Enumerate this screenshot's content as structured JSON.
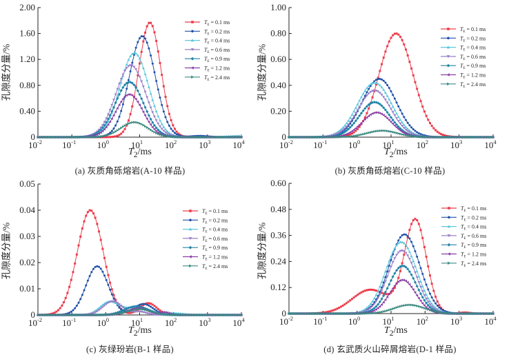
{
  "series_styles": [
    {
      "name": "T_E = 0.1 ms",
      "label_prefix": "T",
      "label_sub": "E",
      "label_value": " = 0.1 ms",
      "color": "#ee3b4a",
      "marker": "square"
    },
    {
      "name": "T_E = 0.2 ms",
      "label_prefix": "T",
      "label_sub": "E",
      "label_value": " = 0.2 ms",
      "color": "#1f4fa8",
      "marker": "circle"
    },
    {
      "name": "T_E = 0.4 ms",
      "label_prefix": "T",
      "label_sub": "E",
      "label_value": " = 0.4 ms",
      "color": "#5cc8dc",
      "marker": "triangle-up"
    },
    {
      "name": "T_E = 0.6 ms",
      "label_prefix": "T",
      "label_sub": "E",
      "label_value": " = 0.6 ms",
      "color": "#9a7fc8",
      "marker": "triangle-down"
    },
    {
      "name": "T_E = 0.9 ms",
      "label_prefix": "T",
      "label_sub": "E",
      "label_value": " = 0.9 ms",
      "color": "#1f84a8",
      "marker": "diamond"
    },
    {
      "name": "T_E = 1.2 ms",
      "label_prefix": "T",
      "label_sub": "E",
      "label_value": " = 1.2 ms",
      "color": "#8a3ea6",
      "marker": "triangle-left"
    },
    {
      "name": "T_E = 2.4 ms",
      "label_prefix": "T",
      "label_sub": "E",
      "label_value": " = 2.4 ms",
      "color": "#3a8a80",
      "marker": "triangle-right"
    }
  ],
  "chart_data": [
    {
      "id": "a",
      "type": "line",
      "title": "(a) 灰质角砾熔岩(A-10 样品)",
      "xlabel": "T2/ms",
      "xlabel_main": "T",
      "xlabel_sub": "2",
      "xlabel_unit": "/ms",
      "ylabel": "孔隙度分量/%",
      "xscale": "log",
      "xlim": [
        0.01,
        10000
      ],
      "ylim": [
        0,
        2.0
      ],
      "xticks": [
        "10^-2",
        "10^-1",
        "10^0",
        "10^1",
        "10^2",
        "10^3",
        "10^4"
      ],
      "yticks": [
        "0",
        "0.40",
        "0.80",
        "1.20",
        "1.60",
        "2.00"
      ],
      "ytick_values": [
        0,
        0.4,
        0.8,
        1.2,
        1.6,
        2.0
      ],
      "legend_position": "top-right",
      "series": [
        {
          "name": "T_E = 0.1 ms",
          "components": [
            {
              "peak_T2": 20,
              "peak": 1.77,
              "width": 0.32
            }
          ]
        },
        {
          "name": "T_E = 0.2 ms",
          "components": [
            {
              "peak_T2": 12,
              "peak": 1.56,
              "width": 0.38
            },
            {
              "peak_T2": 600,
              "peak": 0.02,
              "width": 0.25
            }
          ]
        },
        {
          "name": "T_E = 0.4 ms",
          "components": [
            {
              "peak_T2": 7,
              "peak": 1.3,
              "width": 0.42
            },
            {
              "peak_T2": 8000,
              "peak": 0.02,
              "width": 0.3
            }
          ]
        },
        {
          "name": "T_E = 0.6 ms",
          "components": [
            {
              "peak_T2": 5.5,
              "peak": 1.11,
              "width": 0.44
            }
          ]
        },
        {
          "name": "T_E = 0.9 ms",
          "components": [
            {
              "peak_T2": 5,
              "peak": 0.85,
              "width": 0.42
            }
          ]
        },
        {
          "name": "T_E = 1.2 ms",
          "components": [
            {
              "peak_T2": 5,
              "peak": 0.66,
              "width": 0.4
            }
          ]
        },
        {
          "name": "T_E = 2.4 ms",
          "components": [
            {
              "peak_T2": 7,
              "peak": 0.23,
              "width": 0.4
            }
          ]
        }
      ]
    },
    {
      "id": "b",
      "type": "line",
      "title": "(b) 灰质角砾熔岩(C-10 样品)",
      "xlabel": "T2/ms",
      "xlabel_main": "T",
      "xlabel_sub": "2",
      "xlabel_unit": "/ms",
      "ylabel": "孔隙度分量/%",
      "xscale": "log",
      "xlim": [
        0.01,
        10000
      ],
      "ylim": [
        0,
        1.0
      ],
      "xticks": [
        "10^-2",
        "10^-1",
        "10^0",
        "10^1",
        "10^2",
        "10^3",
        "10^4"
      ],
      "yticks": [
        "0",
        "0.20",
        "0.40",
        "0.60",
        "0.80",
        "1.00"
      ],
      "ytick_values": [
        0,
        0.2,
        0.4,
        0.6,
        0.8,
        1.0
      ],
      "legend_position": "top-right",
      "series": [
        {
          "name": "T_E = 0.1 ms",
          "components": [
            {
              "peak_T2": 14,
              "peak": 0.8,
              "width": 0.5
            }
          ]
        },
        {
          "name": "T_E = 0.2 ms",
          "components": [
            {
              "peak_T2": 4.5,
              "peak": 0.45,
              "width": 0.5
            }
          ]
        },
        {
          "name": "T_E = 0.4 ms",
          "components": [
            {
              "peak_T2": 3.3,
              "peak": 0.42,
              "width": 0.5
            }
          ]
        },
        {
          "name": "T_E = 0.6 ms",
          "components": [
            {
              "peak_T2": 3.3,
              "peak": 0.36,
              "width": 0.48
            }
          ]
        },
        {
          "name": "T_E = 0.9 ms",
          "components": [
            {
              "peak_T2": 3.3,
              "peak": 0.27,
              "width": 0.45
            }
          ]
        },
        {
          "name": "T_E = 1.2 ms",
          "components": [
            {
              "peak_T2": 3.8,
              "peak": 0.19,
              "width": 0.43
            }
          ]
        },
        {
          "name": "T_E = 2.4 ms",
          "components": [
            {
              "peak_T2": 5.5,
              "peak": 0.05,
              "width": 0.45
            }
          ]
        }
      ]
    },
    {
      "id": "c",
      "type": "line",
      "title": "(c) 灰绿玢岩(B-1 样品)",
      "xlabel": "T2/ms",
      "xlabel_main": "T",
      "xlabel_sub": "2",
      "xlabel_unit": "/ms",
      "ylabel": "孔隙度分量/%",
      "xscale": "log",
      "xlim": [
        0.01,
        10000
      ],
      "ylim": [
        0,
        0.05
      ],
      "xticks": [
        "10^-2",
        "10^-1",
        "10^0",
        "10^1",
        "10^2",
        "10^3",
        "10^4"
      ],
      "yticks": [
        "0",
        "0.01",
        "0.02",
        "0.03",
        "0.04",
        "0.05"
      ],
      "ytick_values": [
        0,
        0.01,
        0.02,
        0.03,
        0.04,
        0.05
      ],
      "legend_position": "top-right",
      "series": [
        {
          "name": "T_E = 0.1 ms",
          "components": [
            {
              "peak_T2": 0.35,
              "peak": 0.04,
              "width": 0.38
            },
            {
              "peak_T2": 18,
              "peak": 0.0045,
              "width": 0.25
            }
          ]
        },
        {
          "name": "T_E = 0.2 ms",
          "components": [
            {
              "peak_T2": 0.56,
              "peak": 0.0186,
              "width": 0.33
            },
            {
              "peak_T2": 13,
              "peak": 0.0042,
              "width": 0.28
            }
          ]
        },
        {
          "name": "T_E = 0.4 ms",
          "components": [
            {
              "peak_T2": 1.3,
              "peak": 0.005,
              "width": 0.28
            },
            {
              "peak_T2": 9,
              "peak": 0.003,
              "width": 0.35
            },
            {
              "peak_T2": 100,
              "peak": 0.0007,
              "width": 0.3
            }
          ]
        },
        {
          "name": "T_E = 0.6 ms",
          "components": [
            {
              "peak_T2": 1.6,
              "peak": 0.0052,
              "width": 0.28
            },
            {
              "peak_T2": 10,
              "peak": 0.0012,
              "width": 0.2
            }
          ]
        },
        {
          "name": "T_E = 0.9 ms",
          "components": [
            {
              "peak_T2": 8,
              "peak": 0.0033,
              "width": 0.35
            }
          ]
        },
        {
          "name": "T_E = 1.2 ms",
          "components": [
            {
              "peak_T2": 9,
              "peak": 0.0026,
              "width": 0.3
            },
            {
              "peak_T2": 55,
              "peak": 0.001,
              "width": 0.15
            }
          ]
        },
        {
          "name": "T_E = 2.4 ms",
          "components": [
            {
              "peak_T2": 10,
              "peak": 0.0022,
              "width": 0.35
            }
          ]
        }
      ]
    },
    {
      "id": "d",
      "type": "line",
      "title": "(d) 玄武质火山碎屑熔岩(D-1 样品)",
      "xlabel": "T2/ms",
      "xlabel_main": "T",
      "xlabel_sub": "2",
      "xlabel_unit": "/ms",
      "ylabel": "孔隙度分量/%",
      "xscale": "log",
      "xlim": [
        0.01,
        10000
      ],
      "ylim": [
        0,
        0.6
      ],
      "xticks": [
        "10^-2",
        "10^-1",
        "10^0",
        "10^1",
        "10^2",
        "10^3",
        "10^4"
      ],
      "yticks": [
        "0",
        "0.12",
        "0.24",
        "0.36",
        "0.48",
        "0.60"
      ],
      "ytick_values": [
        0,
        0.12,
        0.24,
        0.36,
        0.48,
        0.6
      ],
      "legend_position": "top-right",
      "series": [
        {
          "name": "T_E = 0.1 ms",
          "components": [
            {
              "peak_T2": 52,
              "peak": 0.43,
              "width": 0.32
            },
            {
              "peak_T2": 2.5,
              "peak": 0.11,
              "width": 0.55
            },
            {
              "peak_T2": 1500,
              "peak": 0.005,
              "width": 0.15
            }
          ]
        },
        {
          "name": "T_E = 0.2 ms",
          "components": [
            {
              "peak_T2": 25,
              "peak": 0.365,
              "width": 0.45
            }
          ]
        },
        {
          "name": "T_E = 0.4 ms",
          "components": [
            {
              "peak_T2": 20,
              "peak": 0.33,
              "width": 0.45
            }
          ]
        },
        {
          "name": "T_E = 0.6 ms",
          "components": [
            {
              "peak_T2": 21,
              "peak": 0.29,
              "width": 0.42
            }
          ]
        },
        {
          "name": "T_E = 0.9 ms",
          "components": [
            {
              "peak_T2": 22,
              "peak": 0.22,
              "width": 0.4
            }
          ]
        },
        {
          "name": "T_E = 1.2 ms",
          "components": [
            {
              "peak_T2": 22,
              "peak": 0.155,
              "width": 0.38
            }
          ]
        },
        {
          "name": "T_E = 2.4 ms",
          "components": [
            {
              "peak_T2": 35,
              "peak": 0.04,
              "width": 0.45
            }
          ]
        }
      ]
    }
  ]
}
